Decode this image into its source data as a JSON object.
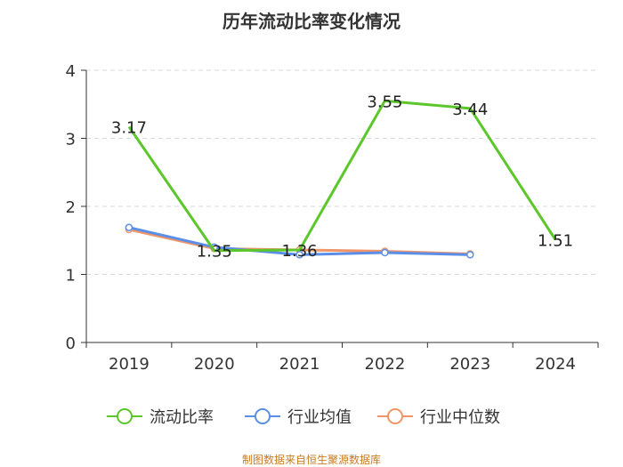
{
  "chart_data": {
    "type": "line",
    "title": "历年流动比率变化情况",
    "categories": [
      "2019",
      "2020",
      "2021",
      "2022",
      "2023",
      "2024"
    ],
    "ylim": [
      0,
      4
    ],
    "yticks": [
      0,
      1,
      2,
      3,
      4
    ],
    "grid": true,
    "legend_position": "bottom",
    "series": [
      {
        "name": "流动比率",
        "color": "#5cc72b",
        "values": [
          3.17,
          1.35,
          1.36,
          3.55,
          3.44,
          1.51
        ],
        "labels": [
          "3.17",
          "1.35",
          "1.36",
          "3.55",
          "3.44",
          "1.51"
        ]
      },
      {
        "name": "行业均值",
        "color": "#5b8ee6",
        "values": [
          1.69,
          1.4,
          1.29,
          1.32,
          1.29,
          null
        ]
      },
      {
        "name": "行业中位数",
        "color": "#f0956a",
        "values": [
          1.66,
          1.38,
          1.36,
          1.34,
          1.3,
          null
        ]
      }
    ]
  },
  "source": "制图数据来自恒生聚源数据库"
}
